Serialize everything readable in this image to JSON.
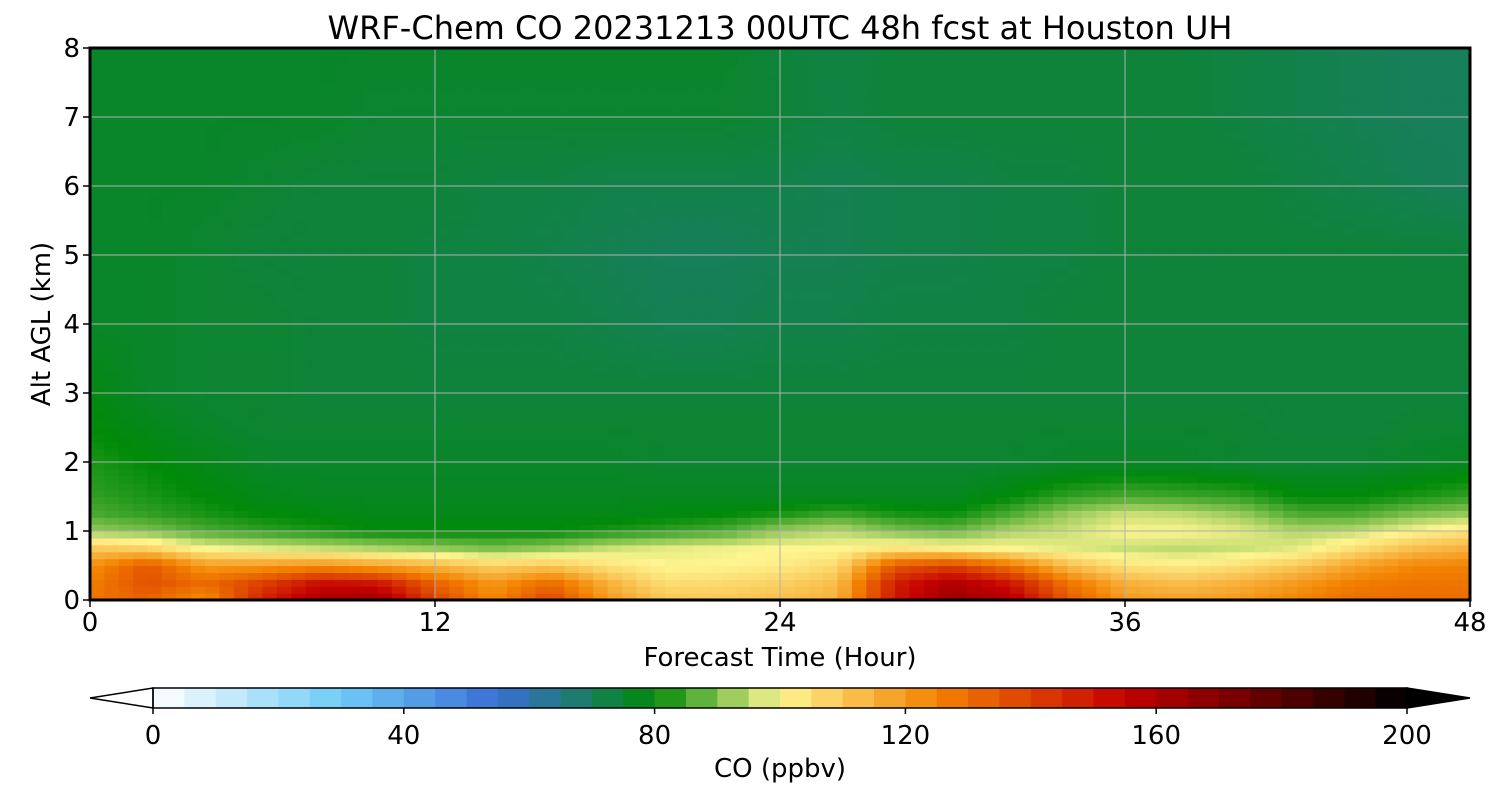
{
  "chart_data": {
    "type": "heatmap",
    "title": "WRF-Chem CO  20231213 00UTC 48h fcst at Houston UH",
    "xlabel": "Forecast Time (Hour)",
    "ylabel": "Alt AGL (km)",
    "x_ticks": [
      "0",
      "12",
      "24",
      "36",
      "48"
    ],
    "y_ticks": [
      "0",
      "1",
      "2",
      "3",
      "4",
      "5",
      "6",
      "7",
      "8"
    ],
    "xlim": [
      0,
      48
    ],
    "ylim": [
      0,
      8
    ],
    "grid": true,
    "field": {
      "x": [
        0,
        2,
        4,
        6,
        8,
        10,
        12,
        14,
        16,
        18,
        20,
        22,
        24,
        26,
        28,
        30,
        32,
        34,
        36,
        38,
        40,
        42,
        44,
        46,
        48
      ],
      "y": [
        0,
        0.25,
        0.5,
        0.75,
        1.0,
        1.25,
        1.5,
        2,
        2.5,
        3,
        4,
        5,
        6,
        7,
        8
      ],
      "note": "rows ordered by altitude (y), columns by forecast hour (x); values in ppbv",
      "values": [
        [
          128,
          132,
          122,
          148,
          162,
          165,
          140,
          124,
          140,
          120,
          110,
          110,
          112,
          115,
          150,
          165,
          160,
          135,
          120,
          118,
          120,
          125,
          130,
          130,
          130
        ],
        [
          126,
          136,
          130,
          140,
          152,
          150,
          132,
          120,
          130,
          115,
          105,
          106,
          108,
          112,
          148,
          160,
          150,
          128,
          115,
          112,
          115,
          120,
          126,
          128,
          128
        ],
        [
          122,
          135,
          120,
          120,
          122,
          118,
          114,
          108,
          110,
          104,
          100,
          100,
          102,
          106,
          135,
          140,
          128,
          112,
          104,
          102,
          105,
          110,
          118,
          124,
          125
        ],
        [
          110,
          108,
          100,
          98,
          96,
          94,
          92,
          90,
          92,
          96,
          98,
          99,
          100,
          100,
          104,
          102,
          100,
          98,
          96,
          95,
          96,
          98,
          105,
          112,
          115
        ],
        [
          92,
          90,
          86,
          84,
          82,
          80,
          80,
          80,
          80,
          82,
          84,
          86,
          92,
          95,
          90,
          88,
          94,
          96,
          100,
          100,
          98,
          94,
          95,
          100,
          104
        ],
        [
          86,
          84,
          82,
          80,
          79,
          78,
          78,
          78,
          78,
          78,
          79,
          80,
          82,
          85,
          82,
          81,
          86,
          92,
          96,
          95,
          92,
          86,
          86,
          90,
          92
        ],
        [
          84,
          82,
          80,
          78,
          77,
          77,
          77,
          77,
          77,
          77,
          77,
          77,
          77,
          77,
          77,
          77,
          80,
          84,
          86,
          85,
          84,
          80,
          80,
          82,
          84
        ],
        [
          82,
          80,
          78,
          76,
          76,
          76,
          76,
          76,
          76,
          76,
          75,
          75,
          75,
          75,
          75,
          75,
          75,
          76,
          76,
          76,
          75,
          75,
          75,
          76,
          77
        ],
        [
          80,
          78,
          76,
          75,
          75,
          75,
          75,
          75,
          75,
          75,
          75,
          75,
          75,
          75,
          75,
          75,
          75,
          75,
          75,
          75,
          75,
          74,
          74,
          75,
          75
        ],
        [
          79,
          76,
          75,
          75,
          74,
          74,
          74,
          74,
          74,
          74,
          74,
          74,
          74,
          74,
          74,
          74,
          74,
          74,
          74,
          74,
          74,
          74,
          74,
          74,
          74
        ],
        [
          76,
          76,
          75,
          75,
          74,
          74,
          73,
          73,
          73,
          72,
          71,
          71,
          72,
          72,
          73,
          73,
          73,
          74,
          74,
          74,
          74,
          74,
          74,
          74,
          74
        ],
        [
          76,
          76,
          75,
          74,
          74,
          74,
          73,
          73,
          72,
          71,
          70,
          70,
          71,
          71,
          72,
          72,
          73,
          73,
          74,
          74,
          74,
          74,
          74,
          74,
          74
        ],
        [
          76,
          76,
          76,
          75,
          74,
          74,
          74,
          73,
          73,
          72,
          72,
          72,
          72,
          71,
          72,
          72,
          73,
          73,
          74,
          74,
          74,
          73,
          72,
          71,
          70
        ],
        [
          76,
          76,
          76,
          76,
          76,
          75,
          75,
          75,
          75,
          75,
          75,
          75,
          74,
          73,
          74,
          74,
          74,
          74,
          74,
          74,
          73,
          72,
          71,
          70,
          70
        ],
        [
          76,
          76,
          76,
          76,
          76,
          76,
          76,
          76,
          76,
          76,
          76,
          76,
          74,
          73,
          74,
          74,
          74,
          74,
          74,
          74,
          73,
          72,
          71,
          70,
          70
        ]
      ]
    },
    "colorbar": {
      "label": "CO  (ppbv)",
      "ticks": [
        "0",
        "40",
        "80",
        "120",
        "160",
        "200"
      ],
      "range": [
        0,
        200
      ],
      "extend": "both",
      "colors": [
        "#ffffff",
        "#6ecbf6",
        "#3a6ed6",
        "#008a08",
        "#fef591",
        "#f38200",
        "#c40000",
        "#000000"
      ]
    }
  }
}
